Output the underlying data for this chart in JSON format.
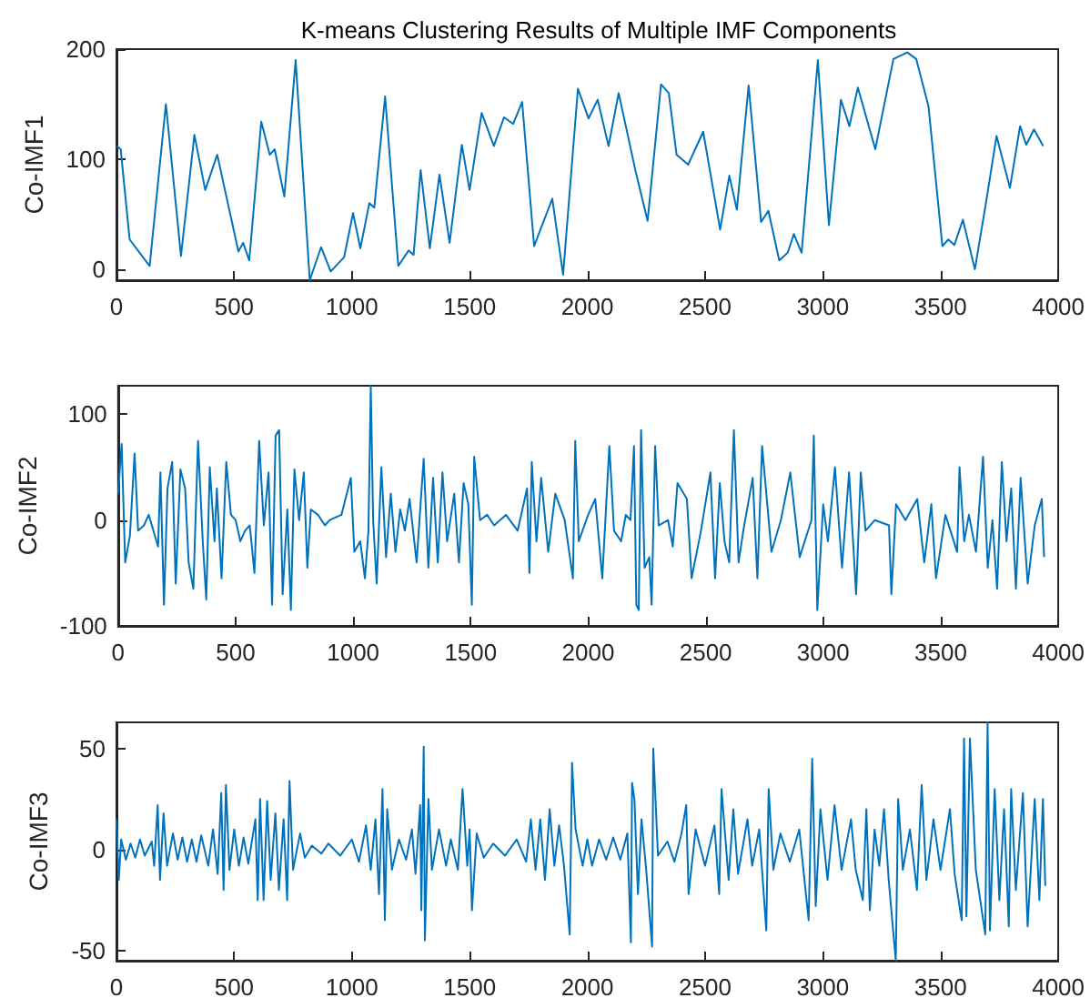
{
  "chart_data": [
    {
      "type": "line",
      "title": "K-means Clustering Results of Multiple IMF Components",
      "ylabel": "Co-IMF1",
      "xlim": [
        0,
        4000
      ],
      "xticks": [
        0,
        500,
        1000,
        1500,
        2000,
        2500,
        3000,
        3500,
        4000
      ],
      "ylim": [
        -10,
        200
      ],
      "yticks": [
        0,
        100,
        200
      ],
      "x": [
        0,
        18,
        56,
        95,
        141,
        210,
        274,
        331,
        377,
        428,
        518,
        538,
        564,
        615,
        651,
        672,
        713,
        761,
        821,
        869,
        910,
        967,
        1005,
        1036,
        1074,
        1095,
        1141,
        1197,
        1241,
        1262,
        1292,
        1331,
        1372,
        1415,
        1467,
        1500,
        1551,
        1603,
        1646,
        1685,
        1723,
        1774,
        1851,
        1897,
        1960,
        2005,
        2044,
        2090,
        2133,
        2205,
        2256,
        2313,
        2346,
        2379,
        2428,
        2492,
        2564,
        2603,
        2635,
        2685,
        2738,
        2769,
        2815,
        2851,
        2877,
        2910,
        2979,
        3026,
        3077,
        3113,
        3149,
        3223,
        3300,
        3359,
        3397,
        3449,
        3508,
        3533,
        3559,
        3595,
        3646,
        3692,
        3738,
        3795,
        3838,
        3864,
        3897,
        3936
      ],
      "series": [
        {
          "color": "#0072bd",
          "values": [
            112,
            109,
            27,
            16,
            3,
            150,
            12,
            122,
            72,
            104,
            16,
            24,
            8,
            134,
            104,
            109,
            66,
            190,
            -10,
            20,
            -2,
            11,
            51,
            19,
            60,
            56,
            157,
            3,
            17,
            13,
            90,
            19,
            86,
            24,
            113,
            72,
            142,
            112,
            138,
            132,
            152,
            21,
            64,
            -5,
            164,
            137,
            154,
            112,
            160,
            89,
            44,
            168,
            160,
            104,
            95,
            125,
            36,
            85,
            54,
            167,
            43,
            53,
            8,
            15,
            32,
            15,
            190,
            40,
            154,
            130,
            165,
            109,
            191,
            197,
            191,
            148,
            21,
            27,
            22,
            45,
            0,
            59,
            121,
            74,
            130,
            113,
            127,
            112
          ]
        }
      ]
    },
    {
      "type": "line",
      "ylabel": "Co-IMF2",
      "xlim": [
        0,
        4000
      ],
      "xticks": [
        0,
        500,
        1000,
        1500,
        2000,
        2500,
        3000,
        3500,
        4000
      ],
      "ylim": [
        -100,
        127
      ],
      "yticks": [
        -100,
        0,
        100
      ],
      "x": [
        0,
        15,
        30,
        50,
        70,
        85,
        110,
        130,
        150,
        170,
        180,
        195,
        210,
        230,
        245,
        265,
        285,
        300,
        320,
        340,
        360,
        375,
        390,
        410,
        420,
        440,
        460,
        480,
        500,
        520,
        540,
        560,
        580,
        600,
        620,
        640,
        655,
        670,
        685,
        700,
        720,
        735,
        750,
        770,
        790,
        805,
        820,
        850,
        880,
        900,
        950,
        990,
        1005,
        1030,
        1050,
        1065,
        1075,
        1085,
        1100,
        1120,
        1140,
        1160,
        1180,
        1200,
        1220,
        1240,
        1270,
        1300,
        1320,
        1340,
        1360,
        1380,
        1400,
        1430,
        1450,
        1470,
        1490,
        1505,
        1515,
        1540,
        1570,
        1600,
        1650,
        1700,
        1740,
        1750,
        1760,
        1780,
        1800,
        1830,
        1860,
        1900,
        1935,
        1945,
        1960,
        2000,
        2030,
        2060,
        2090,
        2110,
        2140,
        2160,
        2180,
        2195,
        2205,
        2215,
        2225,
        2240,
        2260,
        2270,
        2285,
        2300,
        2340,
        2360,
        2380,
        2420,
        2440,
        2480,
        2520,
        2540,
        2560,
        2580,
        2600,
        2620,
        2640,
        2660,
        2700,
        2720,
        2740,
        2780,
        2820,
        2860,
        2900,
        2950,
        2960,
        2975,
        3000,
        3020,
        3050,
        3080,
        3110,
        3140,
        3160,
        3180,
        3220,
        3280,
        3290,
        3310,
        3350,
        3400,
        3430,
        3460,
        3480,
        3520,
        3570,
        3580,
        3600,
        3620,
        3650,
        3680,
        3700,
        3720,
        3740,
        3760,
        3780,
        3800,
        3820,
        3840,
        3870,
        3900,
        3930,
        3940
      ],
      "series": [
        {
          "color": "#0072bd",
          "values": [
            25,
            72,
            -40,
            -15,
            63,
            -10,
            -5,
            5,
            -10,
            -25,
            45,
            -80,
            30,
            55,
            -60,
            48,
            30,
            -40,
            -65,
            75,
            -20,
            -75,
            50,
            -20,
            30,
            -55,
            55,
            5,
            0,
            -20,
            -10,
            -5,
            -50,
            75,
            -5,
            45,
            -80,
            80,
            85,
            -70,
            10,
            -85,
            48,
            0,
            45,
            -45,
            10,
            5,
            -5,
            0,
            5,
            40,
            -30,
            -20,
            -55,
            -10,
            127,
            0,
            -60,
            50,
            -35,
            25,
            -30,
            10,
            -10,
            20,
            -40,
            58,
            -45,
            40,
            -40,
            45,
            -20,
            25,
            -40,
            35,
            15,
            -80,
            60,
            0,
            5,
            -5,
            5,
            -10,
            30,
            -50,
            55,
            -20,
            40,
            -30,
            25,
            0,
            -55,
            75,
            -20,
            5,
            20,
            -55,
            70,
            -10,
            -20,
            5,
            0,
            70,
            -80,
            -85,
            85,
            -45,
            -35,
            -80,
            70,
            -5,
            0,
            -25,
            35,
            20,
            -55,
            -10,
            45,
            -55,
            35,
            -20,
            -40,
            85,
            -40,
            -10,
            40,
            -55,
            70,
            -30,
            0,
            45,
            -35,
            0,
            80,
            -85,
            15,
            -20,
            50,
            -45,
            45,
            -70,
            45,
            -10,
            0,
            -5,
            -70,
            15,
            0,
            20,
            -40,
            15,
            -55,
            5,
            -30,
            50,
            -20,
            5,
            -30,
            60,
            -45,
            0,
            -65,
            55,
            -20,
            30,
            -65,
            40,
            -60,
            -5,
            20,
            -35
          ]
        }
      ]
    },
    {
      "type": "line",
      "ylabel": "Co-IMF3",
      "xlim": [
        0,
        4000
      ],
      "xticks": [
        0,
        500,
        1000,
        1500,
        2000,
        2500,
        3000,
        3500,
        4000
      ],
      "ylim": [
        -55,
        63
      ],
      "yticks": [
        -50,
        0,
        50
      ],
      "x": [
        0,
        10,
        20,
        40,
        60,
        80,
        100,
        120,
        150,
        160,
        175,
        185,
        200,
        215,
        240,
        260,
        280,
        300,
        320,
        340,
        360,
        390,
        410,
        430,
        445,
        455,
        465,
        480,
        500,
        520,
        540,
        560,
        590,
        600,
        610,
        625,
        640,
        655,
        675,
        690,
        710,
        725,
        735,
        750,
        780,
        800,
        830,
        870,
        900,
        950,
        1000,
        1030,
        1060,
        1080,
        1100,
        1115,
        1130,
        1140,
        1150,
        1170,
        1200,
        1230,
        1255,
        1270,
        1290,
        1295,
        1305,
        1310,
        1325,
        1340,
        1370,
        1400,
        1420,
        1450,
        1470,
        1490,
        1500,
        1510,
        1530,
        1560,
        1600,
        1650,
        1700,
        1740,
        1760,
        1780,
        1800,
        1820,
        1840,
        1860,
        1880,
        1900,
        1925,
        1935,
        1950,
        1980,
        2000,
        2020,
        2050,
        2080,
        2110,
        2140,
        2170,
        2185,
        2190,
        2200,
        2215,
        2230,
        2250,
        2275,
        2280,
        2300,
        2340,
        2370,
        2400,
        2420,
        2430,
        2460,
        2500,
        2540,
        2560,
        2570,
        2600,
        2620,
        2640,
        2680,
        2700,
        2730,
        2760,
        2770,
        2790,
        2820,
        2860,
        2900,
        2940,
        2955,
        2970,
        2990,
        3020,
        3050,
        3080,
        3120,
        3140,
        3170,
        3185,
        3200,
        3220,
        3240,
        3260,
        3280,
        3310,
        3320,
        3340,
        3370,
        3400,
        3420,
        3440,
        3470,
        3500,
        3540,
        3560,
        3590,
        3600,
        3610,
        3625,
        3650,
        3690,
        3700,
        3710,
        3730,
        3750,
        3770,
        3790,
        3800,
        3820,
        3850,
        3870,
        3900,
        3920,
        3935,
        3945
      ],
      "series": [
        {
          "color": "#0072bd",
          "values": [
            15,
            -15,
            5,
            -5,
            3,
            -4,
            5,
            -3,
            4,
            -8,
            22,
            -15,
            18,
            -8,
            8,
            -5,
            6,
            -6,
            5,
            -6,
            7,
            -8,
            10,
            -12,
            28,
            -20,
            32,
            -10,
            10,
            -8,
            6,
            -7,
            15,
            -25,
            25,
            -25,
            24,
            -15,
            18,
            -20,
            15,
            -25,
            34,
            -10,
            8,
            -4,
            2,
            -2,
            3,
            -3,
            5,
            -6,
            12,
            -10,
            15,
            -22,
            30,
            -35,
            20,
            -10,
            5,
            -5,
            10,
            -12,
            22,
            -30,
            51,
            -45,
            25,
            -10,
            10,
            -8,
            5,
            -10,
            30,
            -8,
            10,
            -30,
            8,
            -4,
            3,
            -3,
            5,
            -6,
            15,
            -10,
            15,
            -15,
            20,
            -8,
            12,
            -7,
            -42,
            43,
            10,
            -8,
            5,
            -8,
            5,
            -5,
            6,
            -5,
            8,
            -46,
            33,
            25,
            -22,
            15,
            -10,
            -48,
            50,
            -3,
            4,
            -6,
            8,
            22,
            -22,
            10,
            -8,
            12,
            -22,
            30,
            -15,
            20,
            -12,
            15,
            -8,
            10,
            -40,
            30,
            -10,
            8,
            -6,
            10,
            -35,
            45,
            -28,
            20,
            -15,
            22,
            -10,
            15,
            -10,
            -25,
            20,
            -30,
            10,
            -8,
            20,
            -15,
            -55,
            25,
            -10,
            10,
            -20,
            32,
            -15,
            15,
            -10,
            20,
            -12,
            -35,
            55,
            -33,
            55,
            -10,
            -42,
            63,
            -40,
            30,
            -25,
            20,
            -38,
            30,
            -20,
            28,
            -38,
            25,
            -25,
            25,
            -18
          ]
        }
      ]
    }
  ]
}
